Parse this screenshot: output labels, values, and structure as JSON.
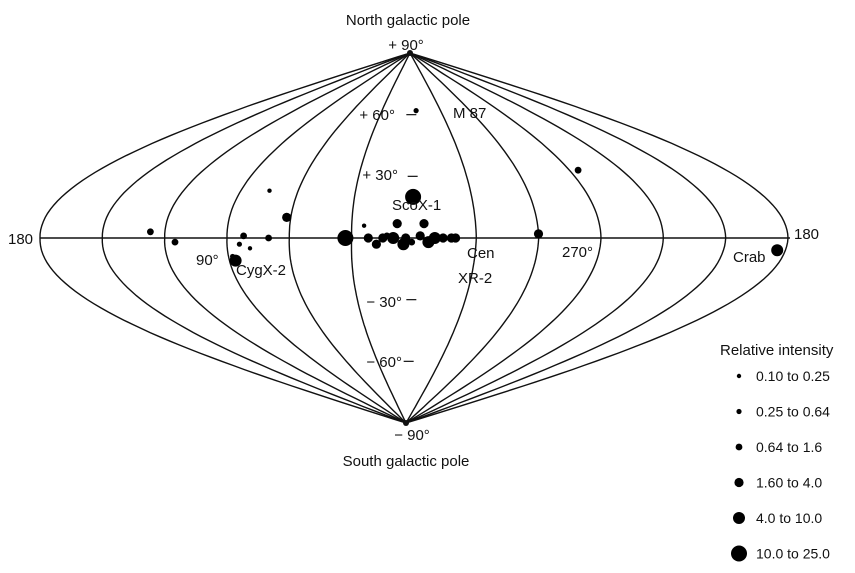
{
  "title": {
    "north_pole": "North galactic pole",
    "south_pole": "South galactic pole"
  },
  "latitude_labels": {
    "p90": "+ 90°",
    "p60": "+ 60°",
    "p30": "+ 30°",
    "m30": "− 30°",
    "m60": "− 60°",
    "m90": "− 90°"
  },
  "longitude_labels": {
    "left_180": "180",
    "right_180": "180",
    "l90": "90°",
    "l270": "270°"
  },
  "source_labels": {
    "m87": "M 87",
    "scox1": "ScoX-1",
    "cygx2": "CygX-2",
    "cen": "Cen",
    "xr2": "XR-2",
    "crab": "Crab"
  },
  "legend": {
    "title": "Relative intensity",
    "items": [
      {
        "label": "0.10 to 0.25",
        "level": 1
      },
      {
        "label": "0.25 to 0.64",
        "level": 2
      },
      {
        "label": "0.64 to 1.6",
        "level": 3
      },
      {
        "label": "1.60 to 4.0",
        "level": 4
      },
      {
        "label": "4.0   to 10.0",
        "level": 5
      },
      {
        "label": "10.0 to 25.0",
        "level": 6
      }
    ]
  },
  "sources": [
    {
      "l": 0,
      "b": 20,
      "level": 6
    },
    {
      "l": 355,
      "b": 62,
      "level": 2
    },
    {
      "l": 8,
      "b": 7,
      "level": 4
    },
    {
      "l": 10,
      "b": 0,
      "level": 5
    },
    {
      "l": 5,
      "b": -3,
      "level": 5
    },
    {
      "l": 1,
      "b": -2,
      "level": 3
    },
    {
      "l": 4,
      "b": 0,
      "level": 4
    },
    {
      "l": 357,
      "b": 1,
      "level": 4
    },
    {
      "l": 353,
      "b": -2,
      "level": 5
    },
    {
      "l": 350,
      "b": 0,
      "level": 5
    },
    {
      "l": 346,
      "b": 0,
      "level": 4
    },
    {
      "l": 342,
      "b": 0,
      "level": 4
    },
    {
      "l": 355,
      "b": 7,
      "level": 4
    },
    {
      "l": 340,
      "b": 0,
      "level": 4
    },
    {
      "l": 15,
      "b": 0,
      "level": 4
    },
    {
      "l": 18,
      "b": -3,
      "level": 4
    },
    {
      "l": 13,
      "b": 1,
      "level": 3
    },
    {
      "l": 22,
      "b": 0,
      "level": 4
    },
    {
      "l": 24,
      "b": 6,
      "level": 1
    },
    {
      "l": 33,
      "b": 0,
      "level": 6
    },
    {
      "l": 62,
      "b": 10,
      "level": 4
    },
    {
      "l": 70,
      "b": 0,
      "level": 3
    },
    {
      "l": 75,
      "b": 23,
      "level": 1
    },
    {
      "l": 82,
      "b": 1,
      "level": 3
    },
    {
      "l": 79,
      "b": -5,
      "level": 1
    },
    {
      "l": 84,
      "b": -3,
      "level": 2
    },
    {
      "l": 88,
      "b": -9,
      "level": 2
    },
    {
      "l": 87,
      "b": -11,
      "level": 5
    },
    {
      "l": 115,
      "b": -2,
      "level": 3
    },
    {
      "l": 127,
      "b": 3,
      "level": 3
    },
    {
      "l": 300,
      "b": 2,
      "level": 4
    },
    {
      "l": 265,
      "b": 33,
      "level": 3
    },
    {
      "l": 184,
      "b": -6,
      "level": 5
    }
  ],
  "line_color": "#111111"
}
